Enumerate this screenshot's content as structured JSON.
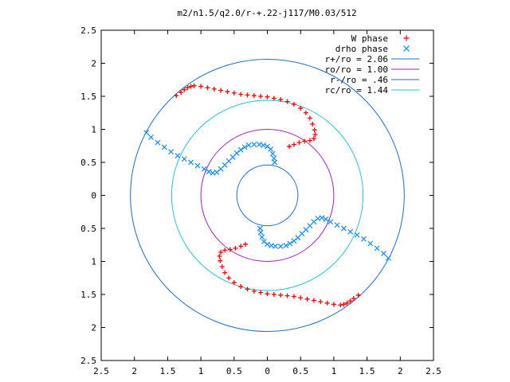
{
  "chart_data": {
    "type": "scatter",
    "title": "m2/n1.5/q2.0/r-+.22-j117/M0.03/512",
    "xlabel": "",
    "ylabel": "",
    "xlim": [
      -2.5,
      2.5
    ],
    "ylim": [
      -2.5,
      2.5
    ],
    "x_ticks": [
      -2.5,
      -2,
      -1.5,
      -1,
      -0.5,
      0,
      0.5,
      1,
      1.5,
      2,
      2.5
    ],
    "x_tick_labels": [
      "2.5",
      "2",
      "1.5",
      "1",
      "0.5",
      "0",
      "0.5",
      "1",
      "1.5",
      "2",
      "2.5"
    ],
    "y_ticks": [
      2.5,
      2,
      1.5,
      1,
      0.5,
      0,
      -0.5,
      -1,
      -1.5,
      -2,
      -2.5
    ],
    "y_tick_labels": [
      "2.5",
      "2",
      "1.5",
      "1",
      "0.5",
      "0",
      "0.5",
      "1",
      "1.5",
      "2",
      "2.5"
    ],
    "grid": false,
    "legend_position": "top-right",
    "circles": [
      {
        "label": "r+/ro = 2.06",
        "radius": 2.06,
        "color": "#1a6ecc"
      },
      {
        "label": "ro/ro = 1.00",
        "radius": 1.0,
        "color": "#a020c0"
      },
      {
        "label": "r-/ro = .46",
        "radius": 0.46,
        "color": "#1a6ecc"
      },
      {
        "label": "rc/ro = 1.44",
        "radius": 1.44,
        "color": "#22c7d6"
      }
    ],
    "series": [
      {
        "name": "W phase",
        "marker": "+",
        "color": "#ff0000",
        "points": [
          [
            -1.37,
            1.51
          ],
          [
            -1.3,
            1.56
          ],
          [
            -1.25,
            1.6
          ],
          [
            -1.2,
            1.63
          ],
          [
            -1.15,
            1.65
          ],
          [
            -1.1,
            1.66
          ],
          [
            -1.0,
            1.65
          ],
          [
            -0.9,
            1.63
          ],
          [
            -0.8,
            1.61
          ],
          [
            -0.7,
            1.59
          ],
          [
            -0.6,
            1.57
          ],
          [
            -0.5,
            1.55
          ],
          [
            -0.4,
            1.53
          ],
          [
            -0.3,
            1.52
          ],
          [
            -0.2,
            1.51
          ],
          [
            -0.1,
            1.5
          ],
          [
            0.0,
            1.49
          ],
          [
            0.1,
            1.47
          ],
          [
            0.2,
            1.45
          ],
          [
            0.3,
            1.42
          ],
          [
            0.4,
            1.38
          ],
          [
            0.5,
            1.32
          ],
          [
            0.58,
            1.25
          ],
          [
            0.64,
            1.17
          ],
          [
            0.68,
            1.08
          ],
          [
            0.71,
            0.99
          ],
          [
            0.72,
            0.92
          ],
          [
            0.7,
            0.86
          ],
          [
            0.64,
            0.83
          ],
          [
            0.56,
            0.82
          ],
          [
            0.48,
            0.8
          ],
          [
            0.4,
            0.77
          ],
          [
            0.33,
            0.74
          ],
          [
            1.37,
            -1.51
          ],
          [
            1.3,
            -1.56
          ],
          [
            1.25,
            -1.6
          ],
          [
            1.2,
            -1.63
          ],
          [
            1.15,
            -1.65
          ],
          [
            1.1,
            -1.66
          ],
          [
            1.0,
            -1.65
          ],
          [
            0.9,
            -1.63
          ],
          [
            0.8,
            -1.61
          ],
          [
            0.7,
            -1.59
          ],
          [
            0.6,
            -1.57
          ],
          [
            0.5,
            -1.55
          ],
          [
            0.4,
            -1.53
          ],
          [
            0.3,
            -1.52
          ],
          [
            0.2,
            -1.51
          ],
          [
            0.1,
            -1.5
          ],
          [
            0.0,
            -1.49
          ],
          [
            -0.1,
            -1.47
          ],
          [
            -0.2,
            -1.45
          ],
          [
            -0.3,
            -1.42
          ],
          [
            -0.4,
            -1.38
          ],
          [
            -0.5,
            -1.32
          ],
          [
            -0.58,
            -1.25
          ],
          [
            -0.64,
            -1.17
          ],
          [
            -0.68,
            -1.08
          ],
          [
            -0.71,
            -0.99
          ],
          [
            -0.72,
            -0.92
          ],
          [
            -0.7,
            -0.86
          ],
          [
            -0.64,
            -0.83
          ],
          [
            -0.56,
            -0.82
          ],
          [
            -0.48,
            -0.8
          ],
          [
            -0.4,
            -0.77
          ],
          [
            -0.33,
            -0.74
          ]
        ]
      },
      {
        "name": "drho phase",
        "marker": "x",
        "color": "#1e90ff",
        "points": [
          [
            -1.82,
            0.95
          ],
          [
            -1.75,
            0.88
          ],
          [
            -1.65,
            0.8
          ],
          [
            -1.55,
            0.73
          ],
          [
            -1.45,
            0.66
          ],
          [
            -1.35,
            0.6
          ],
          [
            -1.25,
            0.55
          ],
          [
            -1.15,
            0.5
          ],
          [
            -1.05,
            0.45
          ],
          [
            -0.95,
            0.4
          ],
          [
            -0.88,
            0.36
          ],
          [
            -0.82,
            0.34
          ],
          [
            -0.76,
            0.35
          ],
          [
            -0.7,
            0.4
          ],
          [
            -0.64,
            0.46
          ],
          [
            -0.58,
            0.52
          ],
          [
            -0.52,
            0.58
          ],
          [
            -0.46,
            0.64
          ],
          [
            -0.4,
            0.69
          ],
          [
            -0.34,
            0.73
          ],
          [
            -0.28,
            0.76
          ],
          [
            -0.2,
            0.77
          ],
          [
            -0.12,
            0.77
          ],
          [
            -0.06,
            0.76
          ],
          [
            0.0,
            0.74
          ],
          [
            0.05,
            0.7
          ],
          [
            0.08,
            0.63
          ],
          [
            0.1,
            0.56
          ],
          [
            0.11,
            0.5
          ],
          [
            1.82,
            -0.95
          ],
          [
            1.75,
            -0.88
          ],
          [
            1.65,
            -0.8
          ],
          [
            1.55,
            -0.73
          ],
          [
            1.45,
            -0.66
          ],
          [
            1.35,
            -0.6
          ],
          [
            1.25,
            -0.55
          ],
          [
            1.15,
            -0.5
          ],
          [
            1.05,
            -0.45
          ],
          [
            0.95,
            -0.4
          ],
          [
            0.88,
            -0.36
          ],
          [
            0.82,
            -0.34
          ],
          [
            0.76,
            -0.35
          ],
          [
            0.7,
            -0.4
          ],
          [
            0.64,
            -0.46
          ],
          [
            0.58,
            -0.52
          ],
          [
            0.52,
            -0.58
          ],
          [
            0.46,
            -0.64
          ],
          [
            0.4,
            -0.69
          ],
          [
            0.34,
            -0.73
          ],
          [
            0.28,
            -0.76
          ],
          [
            0.2,
            -0.77
          ],
          [
            0.12,
            -0.77
          ],
          [
            0.06,
            -0.76
          ],
          [
            0.0,
            -0.74
          ],
          [
            -0.05,
            -0.7
          ],
          [
            -0.08,
            -0.63
          ],
          [
            -0.1,
            -0.56
          ],
          [
            -0.11,
            -0.5
          ]
        ]
      }
    ]
  }
}
